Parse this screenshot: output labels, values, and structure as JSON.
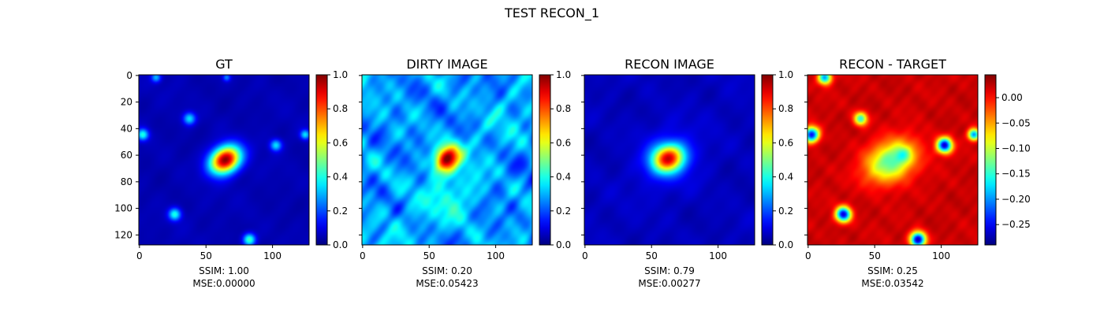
{
  "figure": {
    "title": "TEST RECON_1"
  },
  "panels": [
    {
      "id": "gt",
      "title": "GT",
      "caption_ssim": "SSIM: 1.00",
      "caption_mse": "MSE:0.00000",
      "image_mode": "gt",
      "show_ytick_labels": true,
      "colorbar": {
        "min": 0.0,
        "max": 1.0,
        "ticks": [
          "0.0",
          "0.2",
          "0.4",
          "0.6",
          "0.8",
          "1.0"
        ]
      }
    },
    {
      "id": "dirty",
      "title": "DIRTY IMAGE",
      "caption_ssim": "SSIM: 0.20",
      "caption_mse": "MSE:0.05423",
      "image_mode": "dirty",
      "show_ytick_labels": false,
      "colorbar": {
        "min": 0.0,
        "max": 1.0,
        "ticks": [
          "0.0",
          "0.2",
          "0.4",
          "0.6",
          "0.8",
          "1.0"
        ]
      }
    },
    {
      "id": "recon",
      "title": "RECON IMAGE",
      "caption_ssim": "SSIM: 0.79",
      "caption_mse": "MSE:0.00277",
      "image_mode": "recon",
      "show_ytick_labels": false,
      "colorbar": {
        "min": 0.0,
        "max": 1.0,
        "ticks": [
          "0.0",
          "0.2",
          "0.4",
          "0.6",
          "0.8",
          "1.0"
        ]
      }
    },
    {
      "id": "diff",
      "title": "RECON - TARGET",
      "caption_ssim": "SSIM: 0.25",
      "caption_mse": "MSE:0.03542",
      "image_mode": "diff",
      "show_ytick_labels": false,
      "colorbar": {
        "min": -0.29,
        "max": 0.045,
        "ticks": [
          "0.00",
          "−0.05",
          "−0.10",
          "−0.15",
          "−0.20",
          "−0.25"
        ],
        "tick_values": [
          0.0,
          -0.05,
          -0.1,
          -0.15,
          -0.2,
          -0.25
        ]
      }
    }
  ],
  "axes": {
    "x_ticks": [
      "0",
      "50",
      "100"
    ],
    "x_tick_values": [
      0,
      50,
      100
    ],
    "y_ticks": [
      "0",
      "20",
      "40",
      "60",
      "80",
      "100",
      "120"
    ],
    "y_tick_values": [
      0,
      20,
      40,
      60,
      80,
      100,
      120
    ],
    "image_size": 128
  },
  "chart_data": {
    "type": "heatmap",
    "title": "TEST RECON_1",
    "colormap": "jet",
    "image_size": [
      128,
      128
    ],
    "xlim": [
      0,
      128
    ],
    "ylim": [
      128,
      0
    ],
    "subplots": [
      {
        "title": "GT",
        "color_range": [
          0.0,
          1.0
        ],
        "annotations": [
          "SSIM: 1.00",
          "MSE:0.00000"
        ],
        "features": [
          {
            "kind": "peak",
            "x": 65,
            "y": 64,
            "value": 1.0
          },
          {
            "kind": "small blob",
            "x": 38,
            "y": 33,
            "value": 0.3
          },
          {
            "kind": "small blob",
            "x": 103,
            "y": 53,
            "value": 0.3
          },
          {
            "kind": "small blob",
            "x": 3,
            "y": 45,
            "value": 0.35
          },
          {
            "kind": "small blob",
            "x": 27,
            "y": 105,
            "value": 0.35
          },
          {
            "kind": "small blob",
            "x": 83,
            "y": 124,
            "value": 0.4
          },
          {
            "kind": "small blob",
            "x": 125,
            "y": 45,
            "value": 0.3
          }
        ]
      },
      {
        "title": "DIRTY IMAGE",
        "color_range": [
          0.0,
          1.0
        ],
        "annotations": [
          "SSIM: 0.20",
          "MSE:0.05423"
        ],
        "features": [
          {
            "kind": "peak",
            "x": 64,
            "y": 63,
            "value": 1.0
          }
        ]
      },
      {
        "title": "RECON IMAGE",
        "color_range": [
          0.0,
          1.0
        ],
        "annotations": [
          "SSIM: 0.79",
          "MSE:0.00277"
        ],
        "features": [
          {
            "kind": "peak",
            "x": 63,
            "y": 63,
            "value": 0.85
          }
        ]
      },
      {
        "title": "RECON - TARGET",
        "color_range": [
          -0.29,
          0.045
        ],
        "annotations": [
          "SSIM: 0.25",
          "MSE:0.03542"
        ],
        "features": [
          {
            "kind": "negative region",
            "x": 63,
            "y": 65,
            "value": -0.18
          },
          {
            "kind": "negative blob",
            "x": 103,
            "y": 53,
            "value": -0.27
          },
          {
            "kind": "negative blob",
            "x": 27,
            "y": 105,
            "value": -0.27
          },
          {
            "kind": "negative blob",
            "x": 83,
            "y": 124,
            "value": -0.29
          },
          {
            "kind": "negative blob",
            "x": 40,
            "y": 33,
            "value": -0.15
          },
          {
            "kind": "negative blob",
            "x": 3,
            "y": 45,
            "value": -0.25
          },
          {
            "kind": "negative blob",
            "x": 13,
            "y": 2,
            "value": -0.2
          }
        ]
      }
    ]
  }
}
